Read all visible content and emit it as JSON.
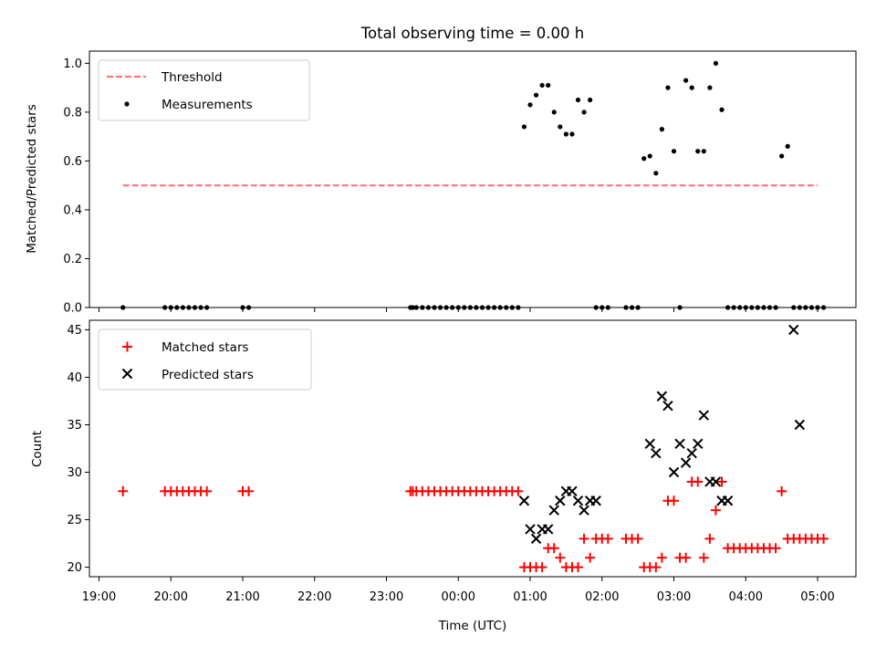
{
  "figure": {
    "title": "Total observing time = 0.00 h"
  },
  "chart_data": [
    {
      "type": "scatter",
      "title": "Total observing time = 0.00 h",
      "xlabel": "",
      "ylabel": "Matched/Predicted stars",
      "ylim": [
        0,
        1.05
      ],
      "yticks": [
        "0.0",
        "0.2",
        "0.4",
        "0.6",
        "0.8",
        "1.0"
      ],
      "xlim": [
        "18:52",
        "05:32"
      ],
      "legend_position": "top-left",
      "threshold": {
        "name": "Threshold",
        "value": 0.5,
        "x_range": [
          "19:20",
          "05:00"
        ],
        "color": "#ff7070"
      },
      "series": [
        {
          "name": "Measurements",
          "color": "#000000",
          "x": [
            "19:20",
            "19:55",
            "20:00",
            "20:05",
            "20:10",
            "20:15",
            "20:20",
            "20:25",
            "20:30",
            "21:00",
            "21:05",
            "23:20",
            "23:22",
            "23:25",
            "23:30",
            "23:35",
            "23:40",
            "23:45",
            "23:50",
            "23:55",
            "00:00",
            "00:05",
            "00:10",
            "00:15",
            "00:20",
            "00:25",
            "00:30",
            "00:35",
            "00:40",
            "00:45",
            "00:50",
            "00:55",
            "01:00",
            "01:05",
            "01:10",
            "01:15",
            "01:20",
            "01:25",
            "01:30",
            "01:35",
            "01:40",
            "01:45",
            "01:50",
            "01:55",
            "02:00",
            "02:05",
            "02:20",
            "02:25",
            "02:30",
            "02:35",
            "02:40",
            "02:45",
            "02:50",
            "02:55",
            "03:00",
            "03:05",
            "03:10",
            "03:15",
            "03:20",
            "03:25",
            "03:30",
            "03:35",
            "03:40",
            "03:45",
            "03:50",
            "03:55",
            "04:00",
            "04:05",
            "04:10",
            "04:15",
            "04:20",
            "04:25",
            "04:30",
            "04:35",
            "04:40",
            "04:45",
            "04:50",
            "04:55",
            "05:00",
            "05:05"
          ],
          "y": [
            0,
            0,
            0,
            0,
            0,
            0,
            0,
            0,
            0,
            0,
            0,
            0,
            0,
            0,
            0,
            0,
            0,
            0,
            0,
            0,
            0,
            0,
            0,
            0,
            0,
            0,
            0,
            0,
            0,
            0,
            0,
            0.74,
            0.83,
            0.87,
            0.91,
            0.91,
            0.8,
            0.74,
            0.71,
            0.71,
            0.85,
            0.8,
            0.85,
            0,
            0,
            0,
            0,
            0,
            0,
            0.61,
            0.62,
            0.55,
            0.73,
            0.9,
            0.64,
            0,
            0.93,
            0.9,
            0.64,
            0.64,
            0.9,
            1.0,
            0.81,
            0,
            0,
            0,
            0,
            0,
            0,
            0,
            0,
            0,
            0.62,
            0.66,
            0,
            0,
            0,
            0,
            0,
            0
          ]
        }
      ]
    },
    {
      "type": "scatter",
      "title": "",
      "xlabel": "Time (UTC)",
      "ylabel": "Count",
      "ylim": [
        19,
        46
      ],
      "yticks": [
        "20",
        "25",
        "30",
        "35",
        "40",
        "45"
      ],
      "xlim": [
        "18:52",
        "05:32"
      ],
      "xticks": [
        "19:00",
        "20:00",
        "21:00",
        "22:00",
        "23:00",
        "00:00",
        "01:00",
        "02:00",
        "03:00",
        "04:00",
        "05:00"
      ],
      "legend_position": "top-left",
      "series": [
        {
          "name": "Matched stars",
          "marker": "plus",
          "color": "#ff0000",
          "x": [
            "19:20",
            "19:55",
            "20:00",
            "20:05",
            "20:10",
            "20:15",
            "20:20",
            "20:25",
            "20:30",
            "21:00",
            "21:05",
            "23:20",
            "23:22",
            "23:25",
            "23:30",
            "23:35",
            "23:40",
            "23:45",
            "23:50",
            "23:55",
            "00:00",
            "00:05",
            "00:10",
            "00:15",
            "00:20",
            "00:25",
            "00:30",
            "00:35",
            "00:40",
            "00:45",
            "00:50",
            "00:55",
            "01:00",
            "01:05",
            "01:10",
            "01:15",
            "01:20",
            "01:25",
            "01:30",
            "01:35",
            "01:40",
            "01:45",
            "01:50",
            "01:55",
            "02:00",
            "02:05",
            "02:20",
            "02:25",
            "02:30",
            "02:35",
            "02:40",
            "02:45",
            "02:50",
            "02:55",
            "03:00",
            "03:05",
            "03:10",
            "03:15",
            "03:20",
            "03:25",
            "03:30",
            "03:35",
            "03:40",
            "03:45",
            "03:50",
            "03:55",
            "04:00",
            "04:05",
            "04:10",
            "04:15",
            "04:20",
            "04:25",
            "04:30",
            "04:35",
            "04:40",
            "04:45",
            "04:50",
            "04:55",
            "05:00",
            "05:05"
          ],
          "y": [
            28,
            28,
            28,
            28,
            28,
            28,
            28,
            28,
            28,
            28,
            28,
            28,
            28,
            28,
            28,
            28,
            28,
            28,
            28,
            28,
            28,
            28,
            28,
            28,
            28,
            28,
            28,
            28,
            28,
            28,
            28,
            20,
            20,
            20,
            20,
            22,
            22,
            21,
            20,
            20,
            20,
            23,
            21,
            23,
            23,
            23,
            23,
            23,
            23,
            20,
            20,
            20,
            21,
            27,
            27,
            21,
            21,
            29,
            29,
            21,
            23,
            26,
            29,
            22,
            22,
            22,
            22,
            22,
            22,
            22,
            22,
            22,
            28,
            23,
            23,
            23,
            23,
            23,
            23,
            23
          ]
        },
        {
          "name": "Predicted stars",
          "marker": "x",
          "color": "#000000",
          "x": [
            "00:55",
            "01:00",
            "01:05",
            "01:10",
            "01:15",
            "01:20",
            "01:25",
            "01:30",
            "01:35",
            "01:40",
            "01:45",
            "01:50",
            "01:55",
            "02:40",
            "02:45",
            "02:50",
            "02:55",
            "03:00",
            "03:05",
            "03:10",
            "03:15",
            "03:20",
            "03:25",
            "03:30",
            "03:35",
            "03:40",
            "03:45",
            "04:40",
            "04:45"
          ],
          "y": [
            27,
            24,
            23,
            24,
            24,
            26,
            27,
            28,
            28,
            27,
            26,
            27,
            27,
            33,
            32,
            38,
            37,
            30,
            33,
            31,
            32,
            33,
            36,
            29,
            29,
            27,
            27,
            45,
            35
          ]
        }
      ]
    }
  ]
}
